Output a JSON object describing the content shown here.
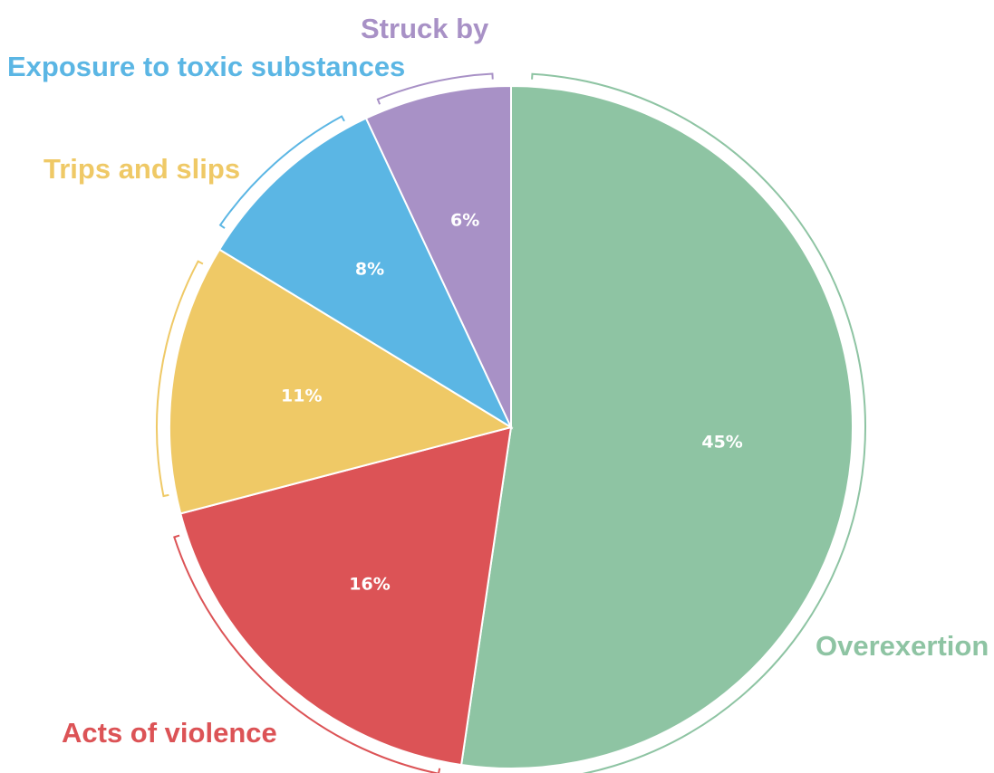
{
  "chart_data": {
    "type": "pie",
    "start": "12 o'clock",
    "direction": "clockwise",
    "slices": [
      {
        "label": "Overexertion",
        "value": 45,
        "value_label": "45%",
        "color": "#8ec4a3"
      },
      {
        "label": "Acts of violence",
        "value": 16,
        "value_label": "16%",
        "color": "#dc5356"
      },
      {
        "label": "Trips and slips",
        "value": 11,
        "value_label": "11%",
        "color": "#efc966"
      },
      {
        "label": "Exposure to toxic substances",
        "value": 8,
        "value_label": "8%",
        "color": "#5bb6e4"
      },
      {
        "label": "Struck by",
        "value": 6,
        "value_label": "6%",
        "color": "#a891c6"
      }
    ]
  }
}
